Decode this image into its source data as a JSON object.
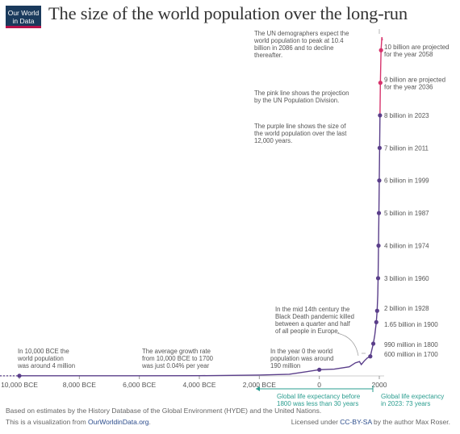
{
  "logo": {
    "line1": "Our World",
    "line2": "in Data"
  },
  "title": "The size of the world population over the long-run",
  "colors": {
    "history": "#5a3e8a",
    "projection": "#d6336c",
    "teal": "#2a9d8f",
    "text": "#555555"
  },
  "chart_data": {
    "type": "line",
    "title": "The size of the world population over the long-run",
    "xlabel": "",
    "ylabel": "",
    "xlim": [
      -10500,
      2100
    ],
    "ylim": [
      0,
      10.6
    ],
    "grid": false,
    "x_ticks": [
      {
        "value": -10000,
        "label": "10,000 BCE"
      },
      {
        "value": -8000,
        "label": "8,000 BCE"
      },
      {
        "value": -6000,
        "label": "6,000 BCE"
      },
      {
        "value": -4000,
        "label": "4,000 BCE"
      },
      {
        "value": -2000,
        "label": "2,000 BCE"
      },
      {
        "value": 0,
        "label": "0"
      },
      {
        "value": 2000,
        "label": "2000"
      }
    ],
    "series": [
      {
        "role": "history",
        "x": [
          -10500,
          -10000,
          -8000,
          -6000,
          -4000,
          -2000,
          -1000,
          0,
          500,
          1000,
          1200,
          1340,
          1400,
          1500,
          1600,
          1700,
          1800,
          1850,
          1900,
          1928,
          1950,
          1960,
          1974,
          1987,
          1999,
          2011,
          2023
        ],
        "y": [
          0.004,
          0.004,
          0.005,
          0.005,
          0.007,
          0.027,
          0.05,
          0.19,
          0.21,
          0.28,
          0.4,
          0.44,
          0.35,
          0.46,
          0.55,
          0.6,
          0.99,
          1.26,
          1.65,
          2.0,
          2.5,
          3.0,
          4.0,
          5.0,
          6.0,
          7.0,
          8.0
        ]
      },
      {
        "role": "projection",
        "x": [
          2023,
          2036,
          2058,
          2086,
          2100
        ],
        "y": [
          8.0,
          9.0,
          10.0,
          10.4,
          10.3
        ]
      }
    ],
    "points": [
      {
        "x": -10000,
        "y": 0.004
      },
      {
        "x": 0,
        "y": 0.19
      },
      {
        "x": 1700,
        "y": 0.6
      },
      {
        "x": 1800,
        "y": 0.99
      },
      {
        "x": 1900,
        "y": 1.65
      },
      {
        "x": 1928,
        "y": 2.0
      },
      {
        "x": 1960,
        "y": 3.0
      },
      {
        "x": 1974,
        "y": 4.0
      },
      {
        "x": 1987,
        "y": 5.0
      },
      {
        "x": 1999,
        "y": 6.0
      },
      {
        "x": 2011,
        "y": 7.0
      },
      {
        "x": 2023,
        "y": 8.0
      },
      {
        "x": 2036,
        "y": 9.0
      },
      {
        "x": 2058,
        "y": 10.0
      }
    ],
    "right_labels": [
      {
        "y": 10.0,
        "lines": [
          "10 billion are projected",
          "for the year 2058"
        ]
      },
      {
        "y": 9.0,
        "lines": [
          "9 billion are projected",
          "for the year 2036"
        ]
      },
      {
        "y": 8.0,
        "lines": [
          "8 billion in 2023"
        ]
      },
      {
        "y": 7.0,
        "lines": [
          "7 billion in 2011"
        ]
      },
      {
        "y": 6.0,
        "lines": [
          "6 billion in 1999"
        ]
      },
      {
        "y": 5.0,
        "lines": [
          "5 billion in 1987"
        ]
      },
      {
        "y": 4.0,
        "lines": [
          "4 billion in 1974"
        ]
      },
      {
        "y": 3.0,
        "lines": [
          "3 billion in 1960"
        ]
      },
      {
        "y": 2.0,
        "lines": [
          "2 billion in 1928"
        ]
      },
      {
        "y": 1.65,
        "lines": [
          "1.65 billion in 1900"
        ]
      },
      {
        "y": 0.99,
        "lines": [
          "990 million in 1800"
        ]
      },
      {
        "y": 0.6,
        "lines": [
          "600 million in 1700"
        ]
      }
    ],
    "notes": [
      {
        "lines": [
          "The UN demographers expect the",
          "world population to peak at 10.4",
          "billion in 2086 and to decline",
          "thereafter."
        ]
      },
      {
        "lines": [
          "The pink line shows the projection",
          "by the UN Population Division."
        ]
      },
      {
        "lines": [
          "The purple line shows the size of",
          "the world population over the last",
          "12,000 years."
        ]
      },
      {
        "lines": [
          "In the mid 14th century the",
          "Black Death pandemic killed",
          "between a quarter and half",
          "of all people in Europe."
        ]
      },
      {
        "lines": [
          "In 10,000 BCE the",
          "world population",
          "was around 4 million"
        ]
      },
      {
        "lines": [
          "The average growth rate",
          "from 10,000 BCE to 1700",
          "was just 0.04% per year"
        ]
      },
      {
        "lines": [
          "In the year 0 the world",
          "population was around",
          "190 million"
        ]
      }
    ],
    "life_expectancy": {
      "before": [
        "Global life expectancy before",
        "1800 was less than 30 years"
      ],
      "after": [
        "Global life expectancy",
        "in 2023: 73 years"
      ]
    }
  },
  "footer": {
    "source": "Based on estimates by the History Database of the Global Environment (HYDE) and the United Nations.",
    "viz_prefix": "This is a visualization from ",
    "viz_link": "OurWorldinData.org",
    "viz_suffix": ".",
    "license_prefix": "Licensed under ",
    "license_link": "CC-BY-SA",
    "license_suffix": " by the author Max Roser."
  }
}
